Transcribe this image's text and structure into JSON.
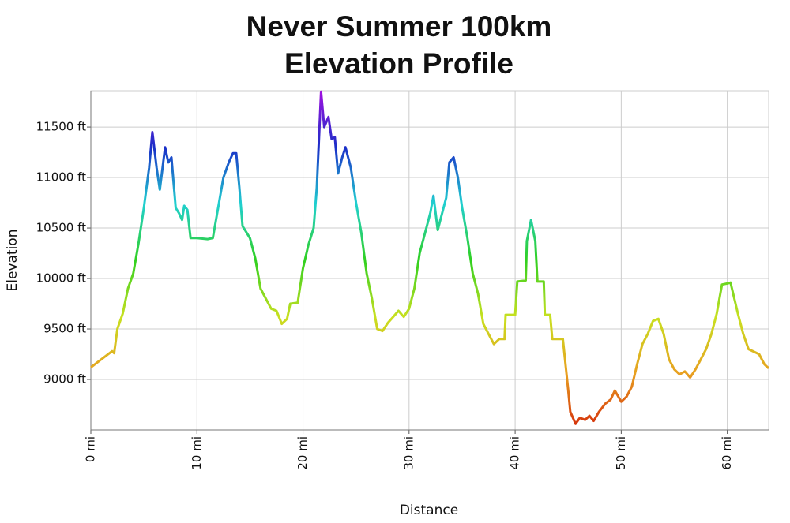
{
  "chart_data": {
    "type": "line",
    "title_lines": [
      "Never Summer 100km",
      "Elevation Profile"
    ],
    "x_label": "Distance",
    "y_label": "Elevation",
    "xlim": [
      0,
      63.9
    ],
    "ylim": [
      8500,
      11860
    ],
    "xticks": [
      {
        "value": 0,
        "label": "0 mi"
      },
      {
        "value": 10,
        "label": "10 mi"
      },
      {
        "value": 20,
        "label": "20 mi"
      },
      {
        "value": 30,
        "label": "30 mi"
      },
      {
        "value": 40,
        "label": "40 mi"
      },
      {
        "value": 50,
        "label": "50 mi"
      },
      {
        "value": 60,
        "label": "60 mi"
      }
    ],
    "yticks": [
      {
        "value": 9000,
        "label": "9000 ft"
      },
      {
        "value": 9500,
        "label": "9500 ft"
      },
      {
        "value": 10000,
        "label": "10000 ft"
      },
      {
        "value": 10500,
        "label": "10500 ft"
      },
      {
        "value": 11000,
        "label": "11000 ft"
      },
      {
        "value": 11500,
        "label": "11500 ft"
      }
    ],
    "grid": true,
    "colorscale": [
      "#d42a0a",
      "#e8a020",
      "#c8e020",
      "#30d020",
      "#20d0d0",
      "#1a2ec8",
      "#a010e0"
    ],
    "x": [
      0,
      1,
      2,
      2.2,
      2.5,
      3,
      3.5,
      4,
      4.5,
      5,
      5.5,
      5.8,
      6.2,
      6.5,
      7,
      7.3,
      7.6,
      8,
      8.3,
      8.6,
      8.8,
      9.1,
      9.4,
      10,
      11,
      11.5,
      12,
      12.5,
      13,
      13.4,
      13.7,
      14,
      14.3,
      15,
      15.5,
      16,
      16.5,
      17,
      17.5,
      18,
      18.5,
      18.8,
      19.5,
      20,
      20.5,
      21,
      21.3,
      21.7,
      22,
      22.4,
      22.7,
      23,
      23.3,
      23.7,
      24,
      24.5,
      25,
      25.5,
      26,
      26.5,
      27,
      27.5,
      28,
      28.5,
      29,
      29.5,
      30,
      30.5,
      31,
      31.5,
      32,
      32.3,
      32.7,
      33,
      33.5,
      33.8,
      34.2,
      34.6,
      35,
      35.5,
      36,
      36.5,
      37,
      37.5,
      38,
      38.5,
      39,
      39.1,
      40,
      40.2,
      41,
      41.1,
      41.5,
      41.9,
      42.1,
      42.7,
      42.8,
      43.3,
      43.5,
      44.5,
      45,
      45.2,
      45.7,
      46.1,
      46.6,
      47,
      47.4,
      47.9,
      48.5,
      49,
      49.4,
      50,
      50.5,
      51,
      51.5,
      52,
      52.5,
      53,
      53.5,
      54,
      54.5,
      55,
      55.5,
      56,
      56.5,
      57,
      57.5,
      58,
      58.5,
      59,
      59.5,
      60,
      60.3,
      61,
      61.5,
      62,
      63,
      63.5,
      63.9
    ],
    "values": [
      9120,
      9200,
      9280,
      9260,
      9500,
      9650,
      9900,
      10050,
      10350,
      10700,
      11100,
      11450,
      11100,
      10880,
      11300,
      11150,
      11200,
      10700,
      10650,
      10580,
      10720,
      10680,
      10400,
      10400,
      10390,
      10400,
      10700,
      11000,
      11150,
      11240,
      11240,
      10900,
      10520,
      10400,
      10200,
      9900,
      9800,
      9700,
      9680,
      9550,
      9600,
      9750,
      9760,
      10100,
      10330,
      10500,
      10900,
      11850,
      11500,
      11600,
      11380,
      11400,
      11040,
      11200,
      11300,
      11100,
      10750,
      10450,
      10050,
      9800,
      9500,
      9480,
      9560,
      9620,
      9680,
      9620,
      9700,
      9900,
      10250,
      10450,
      10650,
      10820,
      10480,
      10600,
      10800,
      11150,
      11200,
      11000,
      10700,
      10400,
      10050,
      9850,
      9550,
      9450,
      9350,
      9400,
      9400,
      9640,
      9640,
      9970,
      9980,
      10370,
      10580,
      10370,
      9970,
      9970,
      9640,
      9640,
      9400,
      9400,
      8900,
      8680,
      8560,
      8620,
      8600,
      8640,
      8590,
      8680,
      8760,
      8800,
      8890,
      8780,
      8830,
      8930,
      9150,
      9350,
      9450,
      9580,
      9600,
      9450,
      9200,
      9100,
      9050,
      9080,
      9020,
      9100,
      9200,
      9300,
      9450,
      9650,
      9940,
      9950,
      9960,
      9650,
      9450,
      9300,
      9250,
      9150,
      9110
    ]
  }
}
